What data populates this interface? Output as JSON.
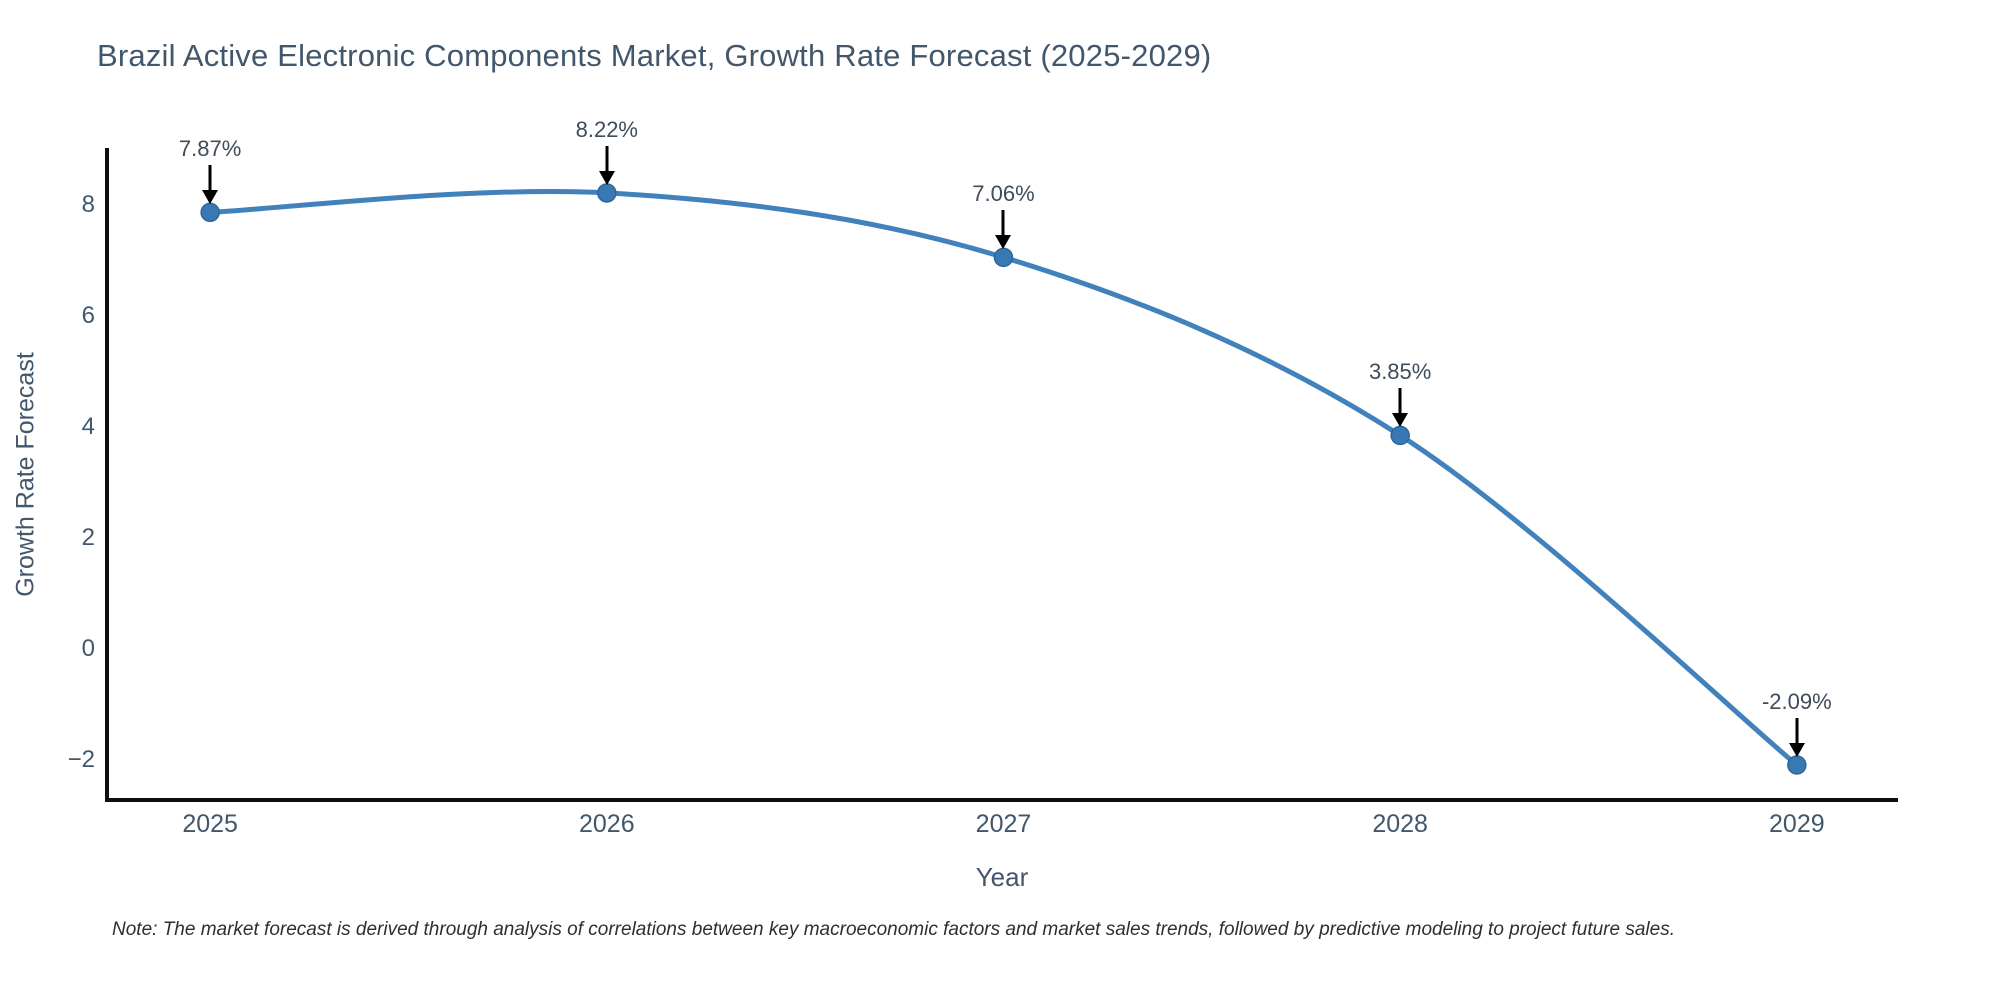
{
  "chart_data": {
    "type": "line",
    "title": "Brazil Active Electronic Components Market, Growth Rate Forecast (2025-2029)",
    "xlabel": "Year",
    "ylabel": "Growth Rate Forecast",
    "x": [
      2025,
      2026,
      2027,
      2028,
      2029
    ],
    "values": [
      7.87,
      8.22,
      7.06,
      3.85,
      -2.09
    ],
    "point_labels": [
      "7.87%",
      "8.22%",
      "7.06%",
      "3.85%",
      "-2.09%"
    ],
    "x_tick_labels": [
      "2025",
      "2026",
      "2027",
      "2028",
      "2029"
    ],
    "y_tick_values": [
      8,
      6,
      4,
      2,
      0,
      -2
    ],
    "y_tick_labels": [
      "8",
      "6",
      "4",
      "2",
      "0",
      "−2"
    ],
    "xlim": [
      2024.74,
      2029.255
    ],
    "ylim": [
      -2.72,
      9.03
    ],
    "grid": false,
    "legend": "none",
    "footnote": "Note: The market forecast is derived through analysis of correlations between key macroeconomic factors and market sales trends, followed by predictive modeling to project future sales.",
    "colors": {
      "line": "#4182bd",
      "marker": "#3a78b3",
      "marker_edge": "#2c669c",
      "axis": "#0f0f0f",
      "text": "#42576b",
      "annotation_text": "#3f4c5c",
      "arrow": "#000000",
      "background": "#ffffff"
    }
  }
}
